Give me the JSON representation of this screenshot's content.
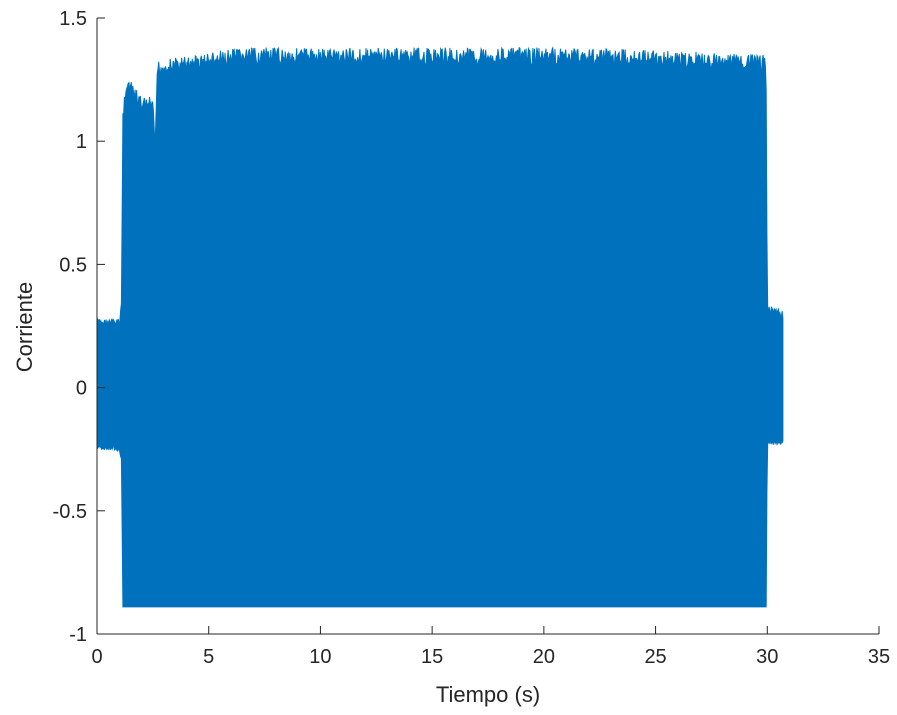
{
  "chart_data": {
    "type": "line",
    "xlabel": "Tiempo (s)",
    "ylabel": "Corriente",
    "xlim": [
      0,
      35
    ],
    "ylim": [
      -1,
      1.5
    ],
    "xticks": [
      0,
      5,
      10,
      15,
      20,
      25,
      30,
      35
    ],
    "yticks": [
      -1,
      -0.5,
      0,
      0.5,
      1,
      1.5
    ],
    "xtick_labels": [
      "0",
      "5",
      "10",
      "15",
      "20",
      "25",
      "30",
      "35"
    ],
    "ytick_labels": [
      "-1",
      "-0.5",
      "0",
      "0.5",
      "1",
      "1.5"
    ],
    "grid": false,
    "line_color": "#0072BD",
    "series": [
      {
        "envelope": [
          {
            "x": 0.0,
            "upper": 0.28,
            "lower": -0.25
          },
          {
            "x": 1.0,
            "upper": 0.28,
            "lower": -0.26
          },
          {
            "x": 1.1,
            "upper": 0.36,
            "lower": -0.31
          },
          {
            "x": 1.15,
            "upper": 1.12,
            "lower": -0.89
          },
          {
            "x": 1.3,
            "upper": 1.27,
            "lower": -0.89
          },
          {
            "x": 2.0,
            "upper": 1.18,
            "lower": -0.89
          },
          {
            "x": 2.5,
            "upper": 1.18,
            "lower": -0.89
          },
          {
            "x": 2.6,
            "upper": 0.97,
            "lower": -0.89
          },
          {
            "x": 2.7,
            "upper": 1.33,
            "lower": -0.89
          },
          {
            "x": 6.5,
            "upper": 1.38,
            "lower": -0.89
          },
          {
            "x": 12.0,
            "upper": 1.38,
            "lower": -0.89
          },
          {
            "x": 22.5,
            "upper": 1.38,
            "lower": -0.89
          },
          {
            "x": 29.9,
            "upper": 1.35,
            "lower": -0.89
          },
          {
            "x": 29.95,
            "upper": 1.23,
            "lower": -0.89
          },
          {
            "x": 30.0,
            "upper": 0.34,
            "lower": -0.23
          },
          {
            "x": 30.7,
            "upper": 0.31,
            "lower": -0.23
          }
        ]
      }
    ]
  }
}
